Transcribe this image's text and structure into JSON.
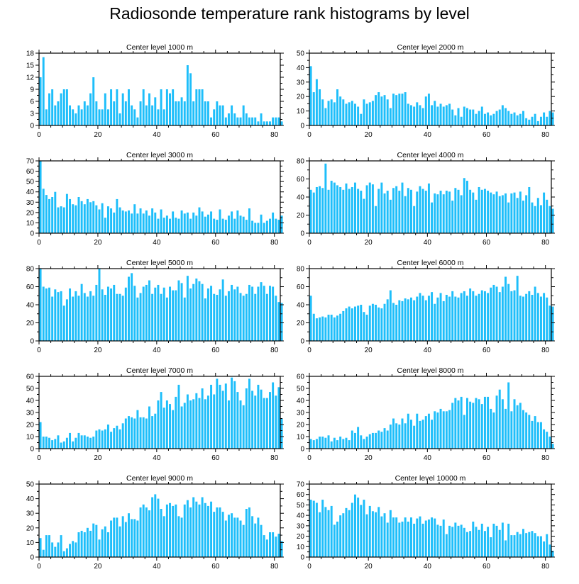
{
  "title": "Radiosonde temperature rank histograms by level",
  "bar_color": "#1ebefa",
  "chart_data": [
    {
      "type": "bar",
      "title": "Center level 1000 m",
      "xlim": [
        0,
        82
      ],
      "xticks": [
        0,
        20,
        40,
        60,
        80
      ],
      "ylim": [
        0,
        18
      ],
      "yticks": [
        0,
        3,
        6,
        9,
        12,
        15,
        18
      ],
      "values": [
        12,
        17,
        4,
        8,
        9,
        5,
        6,
        8,
        9,
        9,
        5,
        4,
        3,
        5,
        4,
        6,
        5,
        8,
        12,
        6,
        4,
        4,
        8,
        4,
        9,
        6,
        9,
        3,
        8,
        6,
        9,
        5,
        4,
        2,
        6,
        9,
        5,
        8,
        5,
        7,
        4,
        9,
        4,
        9,
        8,
        9,
        6,
        6,
        7,
        6,
        15,
        13,
        6,
        9,
        9,
        9,
        6,
        6,
        2,
        4,
        6,
        5,
        5,
        2,
        3,
        5,
        3,
        2,
        2,
        5,
        3,
        2,
        2,
        2,
        1,
        3,
        1,
        1,
        1,
        2,
        2,
        2,
        1
      ]
    },
    {
      "type": "bar",
      "title": "Center level 2000 m",
      "xlim": [
        0,
        82
      ],
      "xticks": [
        0,
        20,
        40,
        60,
        80
      ],
      "ylim": [
        0,
        50
      ],
      "yticks": [
        0,
        10,
        20,
        30,
        40,
        50
      ],
      "values": [
        41,
        23,
        32,
        25,
        18,
        12,
        17,
        18,
        16,
        25,
        20,
        18,
        15,
        16,
        17,
        15,
        13,
        8,
        18,
        15,
        16,
        17,
        21,
        23,
        20,
        21,
        18,
        12,
        22,
        21,
        22,
        22,
        23,
        15,
        14,
        13,
        16,
        14,
        12,
        20,
        22,
        14,
        17,
        13,
        15,
        13,
        14,
        15,
        11,
        7,
        12,
        6,
        13,
        12,
        11,
        11,
        8,
        10,
        13,
        8,
        9,
        7,
        8,
        10,
        11,
        14,
        12,
        10,
        8,
        9,
        7,
        8,
        10,
        5,
        4,
        6,
        8,
        3,
        6,
        9,
        6,
        10,
        9
      ]
    },
    {
      "type": "bar",
      "title": "Center level 3000 m",
      "xlim": [
        0,
        82
      ],
      "xticks": [
        0,
        20,
        40,
        60,
        80
      ],
      "ylim": [
        0,
        70
      ],
      "yticks": [
        0,
        10,
        20,
        30,
        40,
        50,
        60,
        70
      ],
      "values": [
        70,
        43,
        37,
        33,
        35,
        40,
        25,
        26,
        25,
        38,
        33,
        28,
        27,
        35,
        31,
        28,
        33,
        30,
        31,
        27,
        23,
        29,
        15,
        26,
        24,
        20,
        33,
        25,
        22,
        21,
        22,
        19,
        28,
        19,
        24,
        19,
        22,
        17,
        24,
        20,
        14,
        23,
        15,
        17,
        14,
        21,
        15,
        14,
        22,
        19,
        20,
        14,
        20,
        17,
        25,
        21,
        16,
        18,
        21,
        14,
        13,
        23,
        14,
        13,
        17,
        21,
        14,
        22,
        17,
        16,
        13,
        24,
        12,
        10,
        10,
        18,
        10,
        12,
        14,
        20,
        14,
        13,
        17
      ]
    },
    {
      "type": "bar",
      "title": "Center level 4000 m",
      "xlim": [
        0,
        82
      ],
      "xticks": [
        0,
        20,
        40,
        60,
        80
      ],
      "ylim": [
        0,
        80
      ],
      "yticks": [
        0,
        20,
        40,
        60,
        80
      ],
      "values": [
        48,
        45,
        51,
        52,
        50,
        77,
        48,
        58,
        56,
        53,
        51,
        48,
        55,
        49,
        51,
        56,
        49,
        47,
        38,
        53,
        56,
        54,
        30,
        49,
        56,
        44,
        47,
        37,
        50,
        52,
        47,
        56,
        41,
        50,
        48,
        30,
        46,
        52,
        49,
        47,
        55,
        34,
        44,
        43,
        47,
        43,
        47,
        46,
        36,
        50,
        48,
        42,
        61,
        58,
        48,
        45,
        37,
        51,
        48,
        49,
        47,
        45,
        43,
        46,
        41,
        42,
        44,
        34,
        44,
        45,
        39,
        46,
        36,
        42,
        51,
        34,
        30,
        39,
        31,
        45,
        37,
        30,
        27
      ]
    },
    {
      "type": "bar",
      "title": "Center level 5000 m",
      "xlim": [
        0,
        82
      ],
      "xticks": [
        0,
        20,
        40,
        60,
        80
      ],
      "ylim": [
        0,
        80
      ],
      "yticks": [
        0,
        20,
        40,
        60,
        80
      ],
      "values": [
        80,
        60,
        58,
        59,
        49,
        57,
        54,
        55,
        39,
        46,
        58,
        49,
        55,
        50,
        63,
        53,
        49,
        55,
        50,
        62,
        80,
        57,
        51,
        60,
        58,
        62,
        52,
        52,
        50,
        59,
        71,
        75,
        61,
        48,
        53,
        60,
        62,
        67,
        52,
        59,
        62,
        52,
        59,
        48,
        60,
        56,
        56,
        67,
        64,
        48,
        72,
        58,
        63,
        69,
        66,
        63,
        47,
        58,
        61,
        52,
        51,
        57,
        68,
        50,
        55,
        62,
        57,
        60,
        53,
        50,
        52,
        62,
        60,
        52,
        60,
        65,
        61,
        52,
        61,
        60,
        50,
        43,
        42
      ]
    },
    {
      "type": "bar",
      "title": "Center level 6000 m",
      "xlim": [
        0,
        82
      ],
      "xticks": [
        0,
        20,
        40,
        60,
        80
      ],
      "ylim": [
        0,
        80
      ],
      "yticks": [
        0,
        20,
        40,
        60,
        80
      ],
      "values": [
        50,
        30,
        25,
        26,
        27,
        26,
        29,
        29,
        26,
        28,
        30,
        33,
        36,
        38,
        36,
        38,
        39,
        40,
        32,
        29,
        39,
        41,
        40,
        37,
        36,
        41,
        46,
        56,
        42,
        40,
        45,
        44,
        47,
        46,
        48,
        45,
        49,
        53,
        50,
        45,
        50,
        54,
        41,
        48,
        53,
        44,
        51,
        49,
        55,
        49,
        48,
        53,
        55,
        50,
        58,
        55,
        50,
        52,
        56,
        55,
        53,
        59,
        62,
        60,
        54,
        60,
        71,
        63,
        55,
        56,
        72,
        50,
        49,
        52,
        55,
        51,
        60,
        53,
        49,
        53,
        48,
        39,
        38
      ]
    },
    {
      "type": "bar",
      "title": "Center level 7000 m",
      "xlim": [
        0,
        82
      ],
      "xticks": [
        0,
        20,
        40,
        60,
        80
      ],
      "ylim": [
        0,
        60
      ],
      "yticks": [
        0,
        10,
        20,
        30,
        40,
        50,
        60
      ],
      "values": [
        22,
        10,
        10,
        9,
        7,
        8,
        11,
        5,
        6,
        9,
        13,
        6,
        9,
        13,
        11,
        11,
        10,
        9,
        10,
        15,
        16,
        15,
        16,
        20,
        14,
        17,
        19,
        16,
        21,
        25,
        27,
        26,
        25,
        32,
        26,
        26,
        25,
        35,
        27,
        29,
        40,
        47,
        34,
        40,
        37,
        32,
        43,
        53,
        35,
        38,
        45,
        40,
        41,
        46,
        42,
        50,
        41,
        44,
        53,
        45,
        58,
        53,
        48,
        54,
        40,
        59,
        56,
        47,
        40,
        36,
        50,
        58,
        48,
        44,
        53,
        49,
        42,
        42,
        47,
        55,
        44,
        51,
        25
      ]
    },
    {
      "type": "bar",
      "title": "Center level 8000 m",
      "xlim": [
        0,
        82
      ],
      "xticks": [
        0,
        20,
        40,
        60,
        80
      ],
      "ylim": [
        0,
        60
      ],
      "yticks": [
        0,
        10,
        20,
        30,
        40,
        50,
        60
      ],
      "values": [
        8,
        7,
        8,
        10,
        10,
        9,
        11,
        6,
        9,
        7,
        10,
        8,
        9,
        7,
        15,
        13,
        18,
        11,
        8,
        10,
        12,
        13,
        13,
        15,
        14,
        17,
        15,
        20,
        25,
        21,
        20,
        25,
        21,
        29,
        24,
        19,
        29,
        23,
        24,
        27,
        29,
        24,
        31,
        30,
        33,
        31,
        31,
        32,
        38,
        42,
        40,
        43,
        28,
        42,
        39,
        38,
        42,
        41,
        37,
        43,
        43,
        33,
        30,
        44,
        49,
        41,
        33,
        55,
        31,
        41,
        36,
        38,
        32,
        30,
        28,
        23,
        27,
        22,
        22,
        16,
        14,
        10,
        4
      ]
    },
    {
      "type": "bar",
      "title": "Center level 9000 m",
      "xlim": [
        0,
        82
      ],
      "xticks": [
        0,
        20,
        40,
        60,
        80
      ],
      "ylim": [
        0,
        50
      ],
      "yticks": [
        0,
        10,
        20,
        30,
        40,
        50
      ],
      "values": [
        13,
        5,
        15,
        15,
        10,
        7,
        10,
        15,
        4,
        6,
        9,
        11,
        10,
        17,
        18,
        17,
        20,
        18,
        23,
        22,
        12,
        19,
        21,
        17,
        25,
        27,
        27,
        21,
        28,
        24,
        30,
        26,
        26,
        25,
        34,
        36,
        34,
        32,
        41,
        43,
        40,
        33,
        28,
        36,
        37,
        35,
        36,
        28,
        27,
        36,
        39,
        34,
        41,
        38,
        36,
        41,
        37,
        35,
        38,
        31,
        34,
        34,
        31,
        25,
        29,
        30,
        27,
        27,
        25,
        22,
        33,
        34,
        28,
        23,
        27,
        22,
        15,
        12,
        17,
        17,
        14,
        16,
        11
      ]
    },
    {
      "type": "bar",
      "title": "Center level 10000 m",
      "xlim": [
        0,
        82
      ],
      "xticks": [
        0,
        20,
        40,
        60,
        80
      ],
      "ylim": [
        0,
        70
      ],
      "yticks": [
        0,
        10,
        20,
        30,
        40,
        50,
        60,
        70
      ],
      "values": [
        55,
        54,
        52,
        43,
        55,
        48,
        45,
        49,
        31,
        34,
        40,
        42,
        47,
        45,
        52,
        60,
        57,
        50,
        55,
        41,
        49,
        44,
        43,
        48,
        39,
        42,
        33,
        45,
        38,
        38,
        33,
        34,
        38,
        34,
        38,
        32,
        37,
        39,
        32,
        35,
        36,
        38,
        37,
        31,
        30,
        36,
        22,
        30,
        29,
        33,
        30,
        31,
        28,
        24,
        25,
        34,
        29,
        26,
        32,
        25,
        29,
        19,
        32,
        30,
        26,
        33,
        16,
        32,
        21,
        21,
        24,
        22,
        27,
        23,
        24,
        25,
        23,
        20,
        20,
        15,
        22,
        12,
        6
      ]
    }
  ]
}
